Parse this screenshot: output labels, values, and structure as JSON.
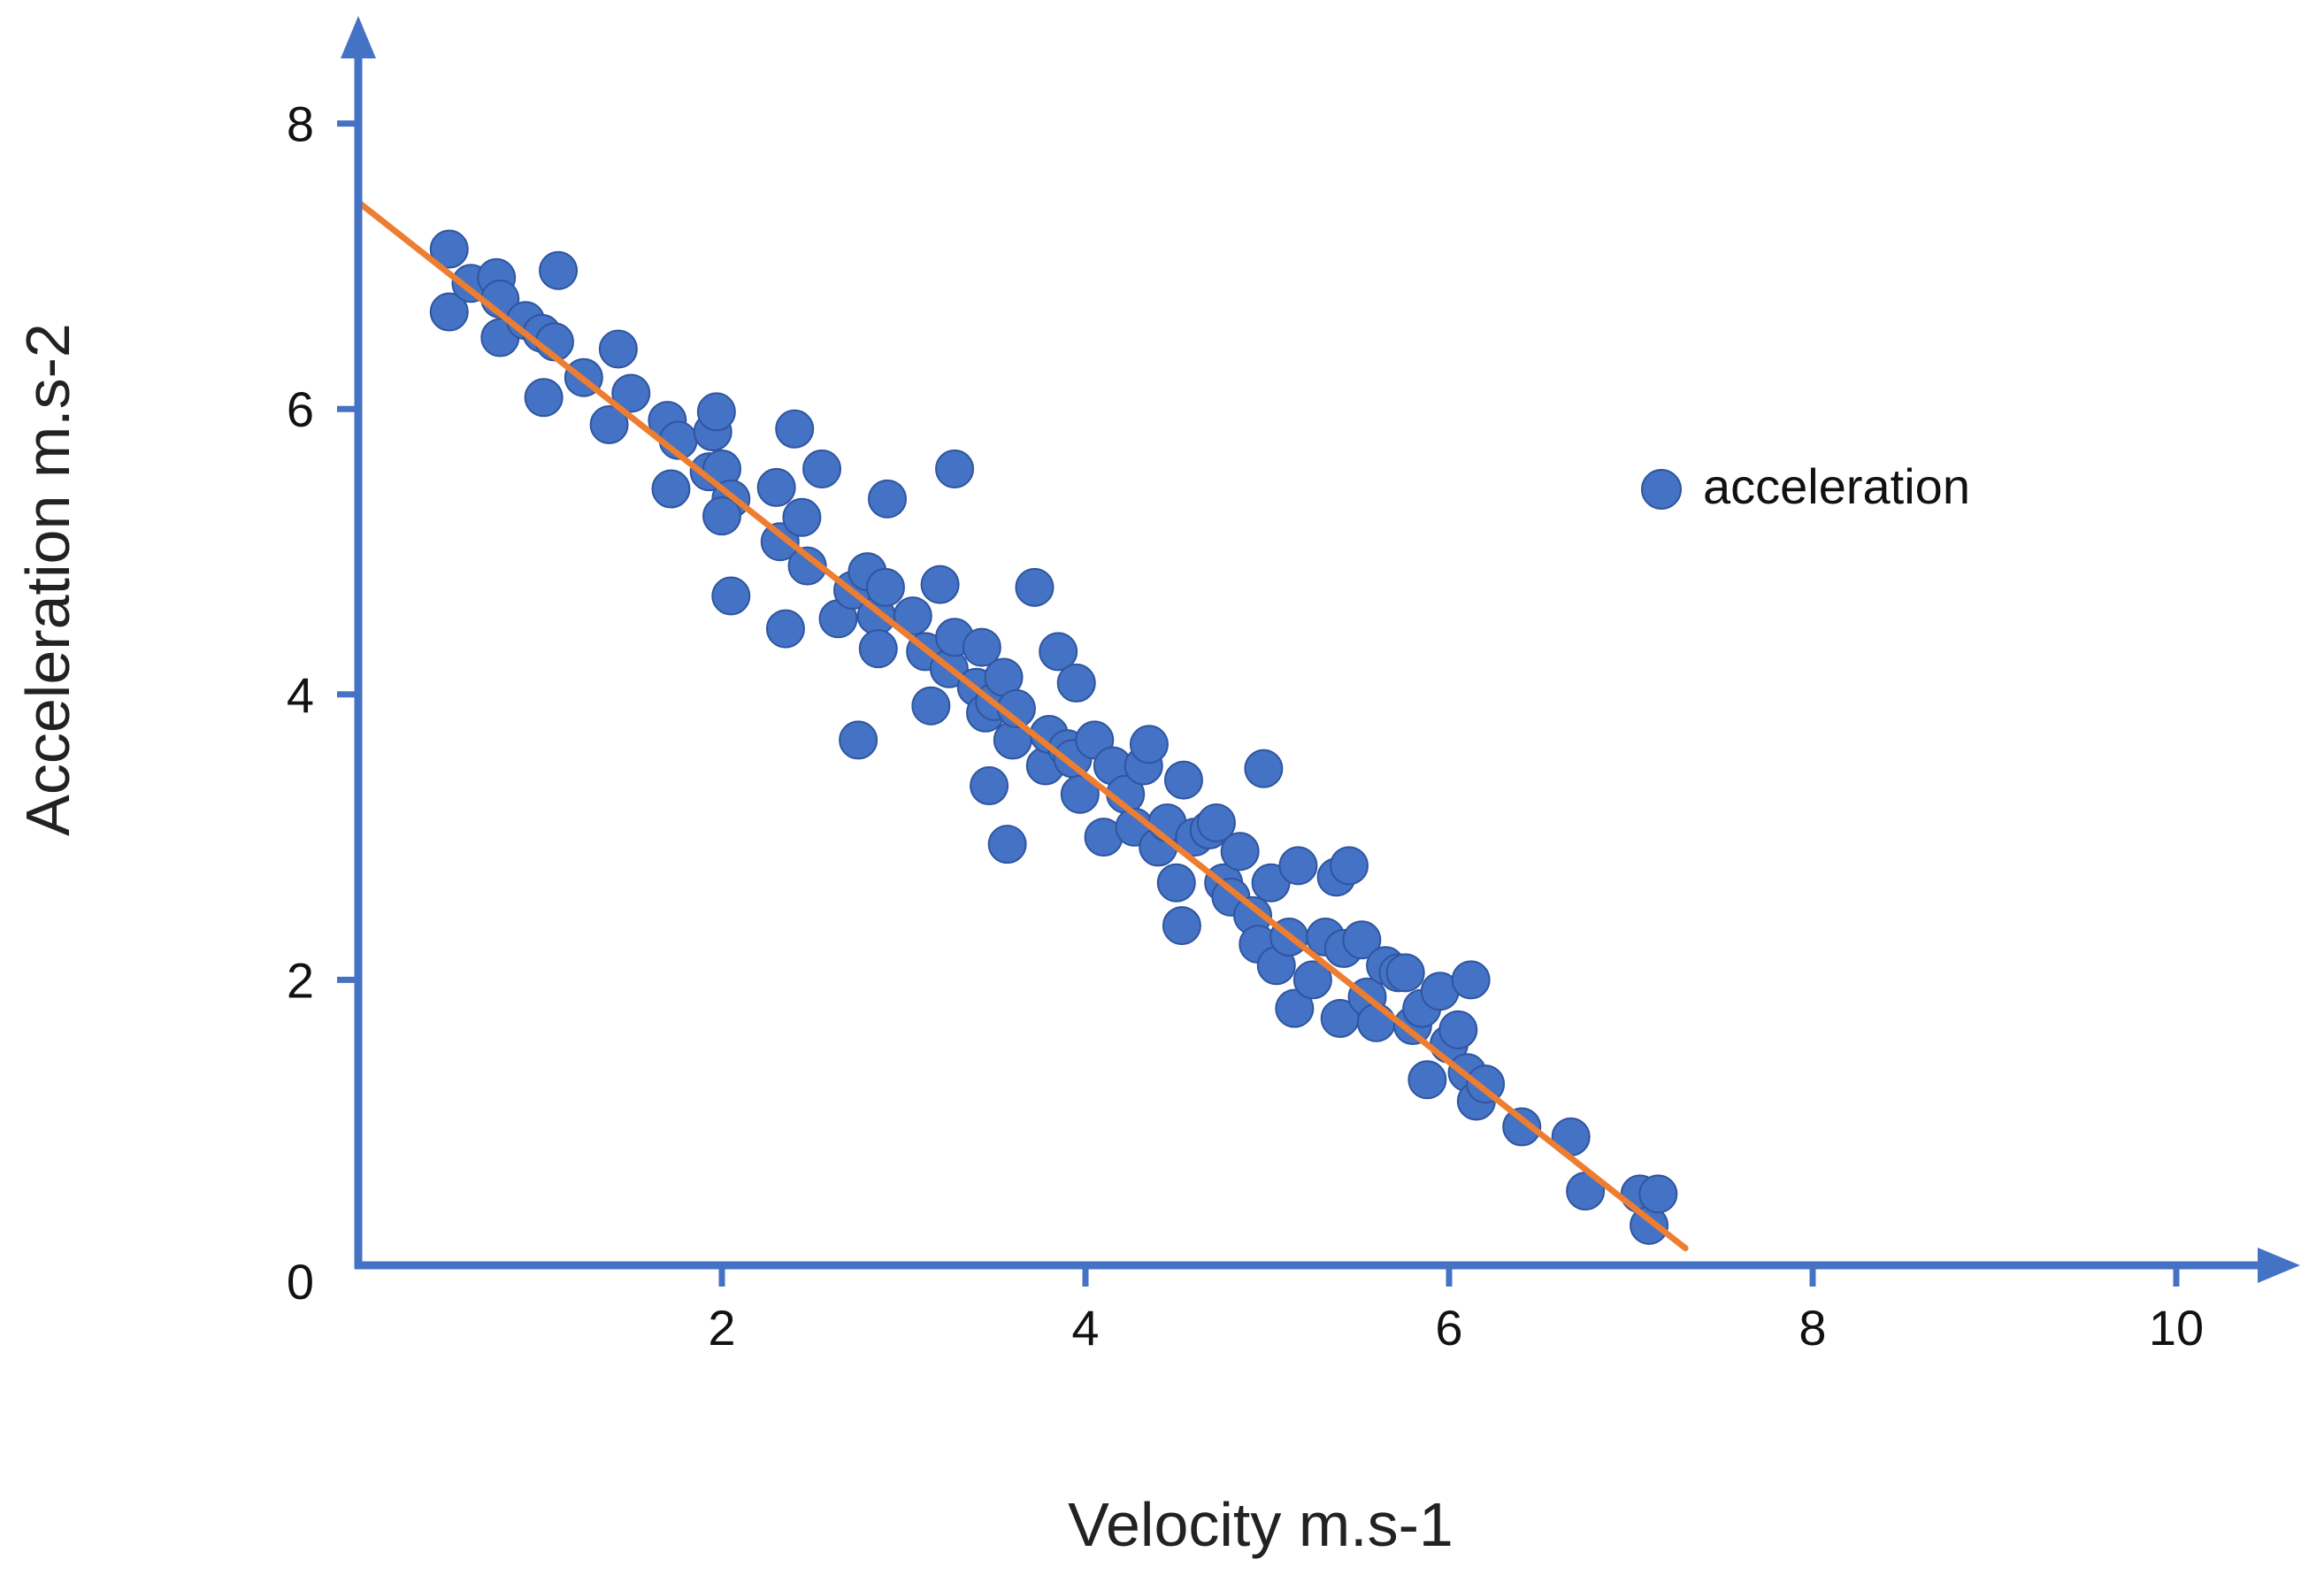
{
  "chart_data": {
    "type": "scatter",
    "title": "",
    "xlabel": "Velocity m.s-1",
    "ylabel": "Acceleration m.s-2",
    "xlim": [
      0,
      10
    ],
    "ylim": [
      0,
      8
    ],
    "x_ticks": [
      2,
      4,
      6,
      8,
      10
    ],
    "y_ticks": [
      0,
      2,
      4,
      6,
      8
    ],
    "x_tick_labels": [
      "2",
      "4",
      "6",
      "8",
      "10"
    ],
    "y_tick_labels": [
      "0",
      "2",
      "4",
      "6",
      "8"
    ],
    "grid": false,
    "legend": {
      "position": "upper-right",
      "entries": [
        "acceleration"
      ]
    },
    "colors": {
      "points": "#4472c4",
      "point_edge": "#2f55a0",
      "axes": "#4472c4",
      "trend": "#ed7d31"
    },
    "trendline": {
      "x": [
        0.0,
        7.3
      ],
      "y": [
        7.45,
        0.12
      ]
    },
    "series": [
      {
        "name": "acceleration",
        "points": [
          [
            0.5,
            7.12
          ],
          [
            0.5,
            6.68
          ],
          [
            0.62,
            6.88
          ],
          [
            0.76,
            6.92
          ],
          [
            0.78,
            6.77
          ],
          [
            0.78,
            6.5
          ],
          [
            0.92,
            6.62
          ],
          [
            1.01,
            6.53
          ],
          [
            1.08,
            6.47
          ],
          [
            1.1,
            6.97
          ],
          [
            1.02,
            6.08
          ],
          [
            1.24,
            6.22
          ],
          [
            1.43,
            6.42
          ],
          [
            1.5,
            6.11
          ],
          [
            1.38,
            5.89
          ],
          [
            1.7,
            5.92
          ],
          [
            1.76,
            5.78
          ],
          [
            1.72,
            5.44
          ],
          [
            1.95,
            5.84
          ],
          [
            1.97,
            5.98
          ],
          [
            1.93,
            5.56
          ],
          [
            2.0,
            5.58
          ],
          [
            2.05,
            5.37
          ],
          [
            2.0,
            5.25
          ],
          [
            2.05,
            4.69
          ],
          [
            2.3,
            5.45
          ],
          [
            2.32,
            5.07
          ],
          [
            2.35,
            4.46
          ],
          [
            2.4,
            5.86
          ],
          [
            2.44,
            5.24
          ],
          [
            2.47,
            4.9
          ],
          [
            2.55,
            5.58
          ],
          [
            2.64,
            4.53
          ],
          [
            2.72,
            4.73
          ],
          [
            2.75,
            3.68
          ],
          [
            2.8,
            4.86
          ],
          [
            2.85,
            4.55
          ],
          [
            2.86,
            4.32
          ],
          [
            2.9,
            4.75
          ],
          [
            2.91,
            5.37
          ],
          [
            3.05,
            4.55
          ],
          [
            3.12,
            4.3
          ],
          [
            3.15,
            3.92
          ],
          [
            3.2,
            4.77
          ],
          [
            3.25,
            4.18
          ],
          [
            3.28,
            4.4
          ],
          [
            3.28,
            5.58
          ],
          [
            3.4,
            4.05
          ],
          [
            3.43,
            4.33
          ],
          [
            3.45,
            3.87
          ],
          [
            3.47,
            3.36
          ],
          [
            3.5,
            3.95
          ],
          [
            3.55,
            4.12
          ],
          [
            3.57,
            2.95
          ],
          [
            3.6,
            3.68
          ],
          [
            3.62,
            3.9
          ],
          [
            3.72,
            4.75
          ],
          [
            3.78,
            3.5
          ],
          [
            3.8,
            3.72
          ],
          [
            3.85,
            4.3
          ],
          [
            3.9,
            3.62
          ],
          [
            3.93,
            3.55
          ],
          [
            3.95,
            4.08
          ],
          [
            3.97,
            3.3
          ],
          [
            4.05,
            3.68
          ],
          [
            4.1,
            3.0
          ],
          [
            4.15,
            3.5
          ],
          [
            4.22,
            3.3
          ],
          [
            4.27,
            3.07
          ],
          [
            4.32,
            3.5
          ],
          [
            4.35,
            3.65
          ],
          [
            4.4,
            2.93
          ],
          [
            4.45,
            3.1
          ],
          [
            4.5,
            2.68
          ],
          [
            4.53,
            2.38
          ],
          [
            4.54,
            3.4
          ],
          [
            4.6,
            3.0
          ],
          [
            4.68,
            3.05
          ],
          [
            4.72,
            3.1
          ],
          [
            4.76,
            2.68
          ],
          [
            4.8,
            2.58
          ],
          [
            4.85,
            2.9
          ],
          [
            4.92,
            2.45
          ],
          [
            4.95,
            2.25
          ],
          [
            4.98,
            3.48
          ],
          [
            5.02,
            2.68
          ],
          [
            5.05,
            2.1
          ],
          [
            5.12,
            2.3
          ],
          [
            5.15,
            1.8
          ],
          [
            5.17,
            2.8
          ],
          [
            5.25,
            2.0
          ],
          [
            5.32,
            2.3
          ],
          [
            5.38,
            2.72
          ],
          [
            5.4,
            1.73
          ],
          [
            5.42,
            2.22
          ],
          [
            5.45,
            2.8
          ],
          [
            5.52,
            2.28
          ],
          [
            5.55,
            1.88
          ],
          [
            5.6,
            1.7
          ],
          [
            5.65,
            2.1
          ],
          [
            5.72,
            2.05
          ],
          [
            5.76,
            2.05
          ],
          [
            5.8,
            1.68
          ],
          [
            5.85,
            1.8
          ],
          [
            5.88,
            1.3
          ],
          [
            5.95,
            1.92
          ],
          [
            6.0,
            1.55
          ],
          [
            6.05,
            1.65
          ],
          [
            6.1,
            1.35
          ],
          [
            6.12,
            2.0
          ],
          [
            6.15,
            1.15
          ],
          [
            6.2,
            1.27
          ],
          [
            6.4,
            0.97
          ],
          [
            6.67,
            0.9
          ],
          [
            6.75,
            0.52
          ],
          [
            7.05,
            0.5
          ],
          [
            7.1,
            0.28
          ],
          [
            7.15,
            0.5
          ]
        ]
      }
    ]
  }
}
